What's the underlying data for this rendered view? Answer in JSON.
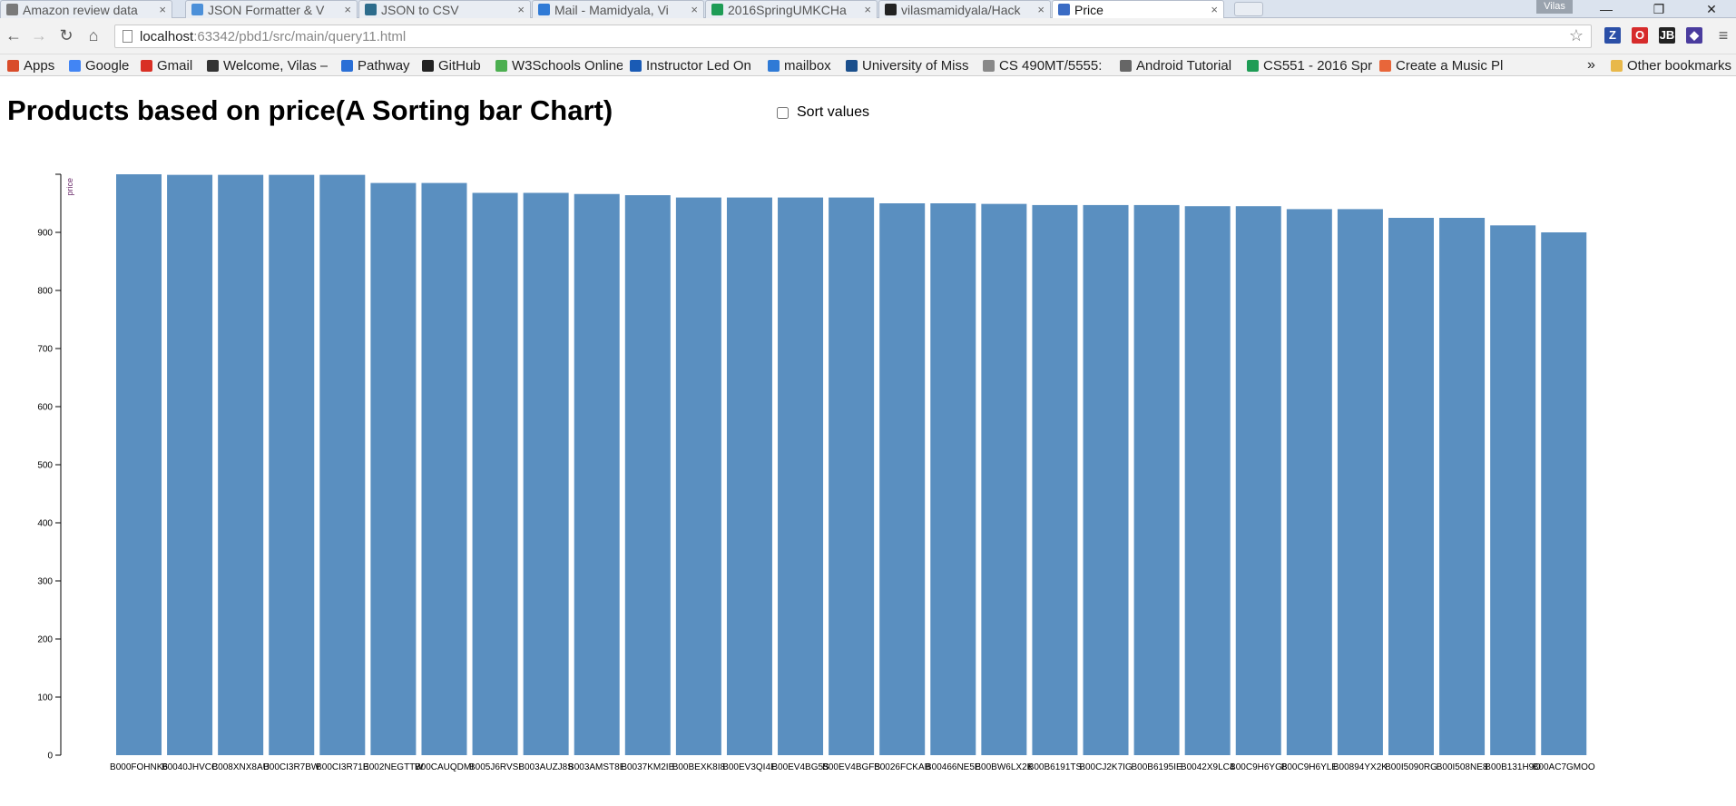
{
  "browser": {
    "tabs": [
      {
        "title": "Amazon review data",
        "icon_color": "#7a7a7a",
        "active": false
      },
      {
        "title": "JSON Formatter & V",
        "icon_color": "#4c90d9",
        "active": false
      },
      {
        "title": "JSON to CSV",
        "icon_color": "#2c6c8c",
        "active": false
      },
      {
        "title": "Mail - Mamidyala, Vi",
        "icon_color": "#2f7ad6",
        "active": false
      },
      {
        "title": "2016SpringUMKCHa",
        "icon_color": "#1e9c55",
        "active": false
      },
      {
        "title": "vilasmamidyala/Hack",
        "icon_color": "#222222",
        "active": false
      },
      {
        "title": "Price",
        "icon_color": "#3a6bc4",
        "active": true
      }
    ],
    "profile_name": "Vilas",
    "window_controls": {
      "minimize": "—",
      "restore": "❐",
      "close": "✕"
    },
    "url_host": "localhost",
    "url_path": ":63342/pbd1/src/main/query11.html",
    "extensions": [
      {
        "name": "zotero-icon",
        "label": "Z",
        "color": "#2b4fa7"
      },
      {
        "name": "opera-icon",
        "label": "O",
        "color": "#d62b2b"
      },
      {
        "name": "jetbrains-icon",
        "label": "JB",
        "color": "#222222"
      },
      {
        "name": "extension-icon",
        "label": "◆",
        "color": "#4a3c9e"
      }
    ],
    "bookmarks": [
      {
        "label": "Apps",
        "icon_color": "#d94c2a"
      },
      {
        "label": "Google",
        "icon_color": "#4285f4"
      },
      {
        "label": "Gmail",
        "icon_color": "#d93025"
      },
      {
        "label": "Welcome, Vilas –",
        "icon_color": "#333333"
      },
      {
        "label": "Pathway",
        "icon_color": "#2a6fd6"
      },
      {
        "label": "GitHub",
        "icon_color": "#222222"
      },
      {
        "label": "W3Schools Online",
        "icon_color": "#4caf50"
      },
      {
        "label": "Instructor Led On",
        "icon_color": "#1a5bb5"
      },
      {
        "label": "mailbox",
        "icon_color": "#2f7ad6"
      },
      {
        "label": "University of Miss",
        "icon_color": "#1a4f8c"
      },
      {
        "label": "CS 490MT/5555:",
        "icon_color": "#888888"
      },
      {
        "label": "Android Tutorial",
        "icon_color": "#666666"
      },
      {
        "label": "CS551 - 2016 Spr",
        "icon_color": "#1e9c55"
      },
      {
        "label": "Create a Music Pl",
        "icon_color": "#e8663a"
      },
      {
        "label": "Other bookmarks",
        "icon_color": "#e8b84a"
      }
    ],
    "bookmarks_overflow": "»"
  },
  "page": {
    "title": "Products based on price(A Sorting bar Chart)",
    "sort_label": "Sort values",
    "sort_checked": false
  },
  "chart_data": {
    "type": "bar",
    "title": "",
    "xlabel": "",
    "ylabel": "price",
    "ylim": [
      0,
      1000
    ],
    "yticks": [
      0,
      100,
      200,
      300,
      400,
      500,
      600,
      700,
      800,
      900
    ],
    "bar_color": "#5a8fc0",
    "categories": [
      "B000FOHNK6",
      "B0040JHVCC",
      "B008XNX8AU",
      "B00CI3R7BW",
      "B00CI3R71E",
      "B002NEGTTW",
      "B00CAUQDMI",
      "B005J6RVSI",
      "B003AUZJ8S",
      "B003AMST8E",
      "B0037KM2IB",
      "B00BEXK8I8",
      "B00EV3QI4E",
      "B00EV4BG5S",
      "B00EV4BGFS",
      "B0026FCKAB",
      "B00466NE5E",
      "B00BW6LX2K",
      "B00B6191TS",
      "B00CJ2K7IG",
      "B00B6195IE",
      "B0042X9LC4",
      "B00C9H6YG8",
      "B00C9H6YLE",
      "B00894YX2K",
      "B00I5090RG",
      "B00I508NE8",
      "B00B131H9O",
      "B00AC7GMOO"
    ],
    "values": [
      1000,
      999,
      999,
      999,
      999,
      985,
      985,
      968,
      968,
      966,
      964,
      960,
      960,
      960,
      960,
      950,
      950,
      949,
      947,
      947,
      947,
      945,
      945,
      940,
      940,
      925,
      925,
      912,
      900
    ]
  }
}
